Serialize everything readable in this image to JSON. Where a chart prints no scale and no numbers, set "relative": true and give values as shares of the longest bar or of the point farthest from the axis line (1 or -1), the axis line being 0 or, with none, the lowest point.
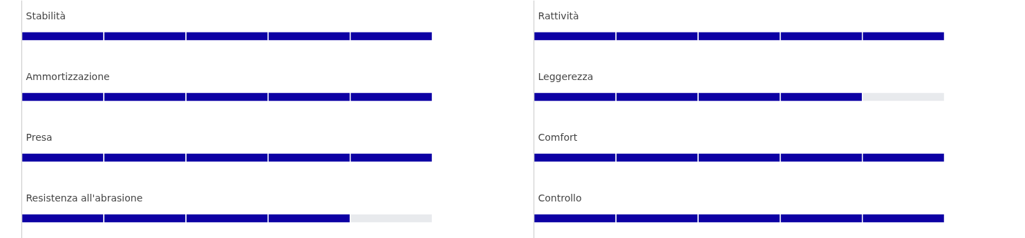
{
  "chart_data": [
    {
      "type": "bar",
      "orientation": "horizontal",
      "relative": true,
      "stacked": true,
      "categories": [
        "Stabilità",
        "Ammortizzazione",
        "Presa",
        "Resistenza all'abrasione"
      ],
      "series": [
        {
          "colors": [
            "#0d00a4",
            "#0d00a4",
            "#0d00a4",
            "#0d00a4"
          ],
          "values": [
            0.2,
            0.2,
            0.2,
            0.2
          ]
        },
        {
          "colors": [
            "#0d00a4",
            "#0d00a4",
            "#0d00a4",
            "#0d00a4"
          ],
          "values": [
            0.2,
            0.2,
            0.2,
            0.2
          ]
        },
        {
          "colors": [
            "#0d00a4",
            "#0d00a4",
            "#0d00a4",
            "#0d00a4"
          ],
          "values": [
            0.2,
            0.2,
            0.2,
            0.2
          ]
        },
        {
          "colors": [
            "#0d00a4",
            "#0d00a4",
            "#0d00a4",
            "#0d00a4"
          ],
          "values": [
            0.2,
            0.2,
            0.2,
            0.2
          ]
        },
        {
          "colors": [
            "#0d00a4",
            "#0d00a4",
            "#0d00a4",
            "#e8eaed"
          ],
          "values": [
            0.2,
            0.2,
            0.2,
            0.2
          ]
        }
      ]
    },
    {
      "type": "bar",
      "orientation": "horizontal",
      "relative": true,
      "stacked": true,
      "categories": [
        "Rattività",
        "Leggerezza",
        "Comfort",
        "Controllo"
      ],
      "series": [
        {
          "colors": [
            "#0d00a4",
            "#0d00a4",
            "#0d00a4",
            "#0d00a4"
          ],
          "values": [
            0.2,
            0.2,
            0.2,
            0.2
          ]
        },
        {
          "colors": [
            "#0d00a4",
            "#0d00a4",
            "#0d00a4",
            "#0d00a4"
          ],
          "values": [
            0.2,
            0.2,
            0.2,
            0.2
          ]
        },
        {
          "colors": [
            "#0d00a4",
            "#0d00a4",
            "#0d00a4",
            "#0d00a4"
          ],
          "values": [
            0.2,
            0.2,
            0.2,
            0.2
          ]
        },
        {
          "colors": [
            "#0d00a4",
            "#0d00a4",
            "#0d00a4",
            "#0d00a4"
          ],
          "values": [
            0.2,
            0.2,
            0.2,
            0.2
          ]
        },
        {
          "colors": [
            "#0d00a4",
            "#e8eaed",
            "#0d00a4",
            "#0d00a4"
          ],
          "values": [
            0.2,
            0.2,
            0.2,
            0.2
          ]
        }
      ]
    }
  ]
}
